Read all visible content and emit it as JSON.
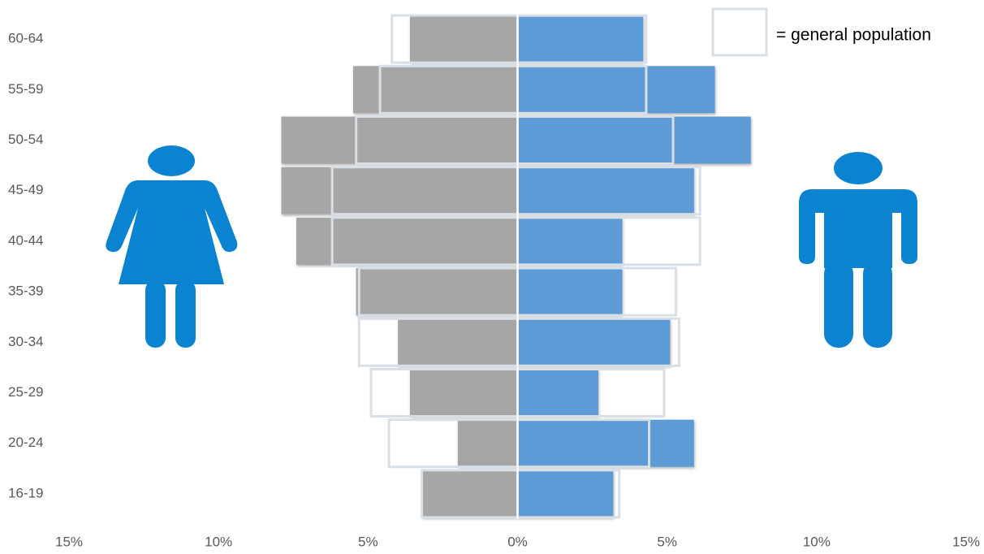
{
  "chart_data": {
    "type": "pyramid",
    "categories": [
      "60-64",
      "55-59",
      "50-54",
      "45-49",
      "40-44",
      "35-39",
      "30-34",
      "25-29",
      "20-24",
      "16-19"
    ],
    "xlim": [
      -15,
      15
    ],
    "xticks": [
      {
        "value": -15,
        "label": "15%"
      },
      {
        "value": -10,
        "label": "10%"
      },
      {
        "value": -5,
        "label": "5%"
      },
      {
        "value": 0,
        "label": "0%"
      },
      {
        "value": 5,
        "label": "5%"
      },
      {
        "value": 10,
        "label": "10%"
      },
      {
        "value": 15,
        "label": "15%"
      }
    ],
    "series": [
      {
        "color": "#a6a6a6",
        "values": [
          3.6,
          5.5,
          7.9,
          7.9,
          7.4,
          5.4,
          4.0,
          3.6,
          2.0,
          3.2
        ],
        "general_population": [
          4.2,
          4.6,
          5.4,
          6.2,
          6.2,
          5.3,
          5.3,
          4.9,
          4.3,
          3.2
        ]
      },
      {
        "color": "#5b9bd5",
        "values": [
          4.2,
          6.6,
          7.8,
          5.9,
          3.5,
          3.5,
          5.1,
          2.7,
          5.9,
          3.2
        ],
        "general_population": [
          4.3,
          4.3,
          5.2,
          6.1,
          6.1,
          5.3,
          5.4,
          4.9,
          4.4,
          3.4
        ]
      }
    ],
    "general_population_color": "#d9dfe6",
    "legend_label": "= general population"
  }
}
